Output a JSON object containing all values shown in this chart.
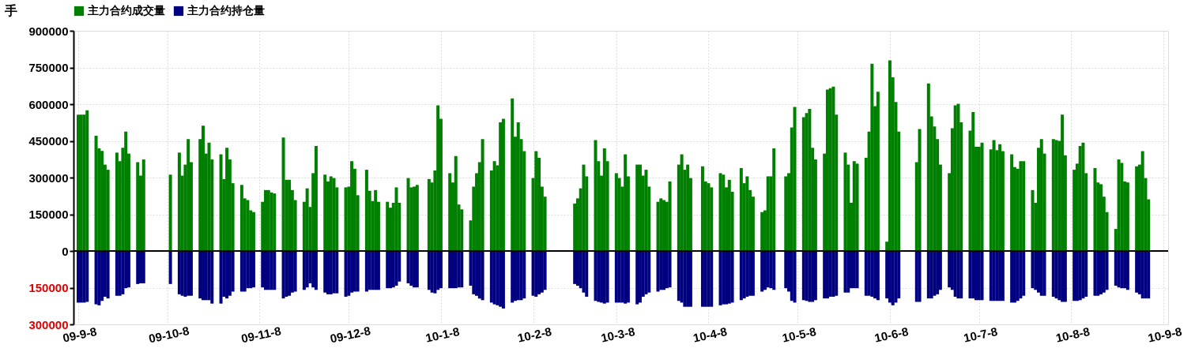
{
  "chart_data": {
    "type": "bar",
    "stacked": true,
    "ylabel": "手",
    "legend": "top",
    "grid": true,
    "xlim": [
      "2009-09-08",
      "2010-09-08"
    ],
    "xticks": [
      {
        "value": "2009-09-08",
        "label": "09-9-8"
      },
      {
        "value": "2009-10-08",
        "label": "09-10-8"
      },
      {
        "value": "2009-11-08",
        "label": "09-11-8"
      },
      {
        "value": "2009-12-08",
        "label": "09-12-8"
      },
      {
        "value": "2010-01-08",
        "label": "10-1-8"
      },
      {
        "value": "2010-02-08",
        "label": "10-2-8"
      },
      {
        "value": "2010-03-08",
        "label": "10-3-8"
      },
      {
        "value": "2010-04-08",
        "label": "10-4-8"
      },
      {
        "value": "2010-05-08",
        "label": "10-5-8"
      },
      {
        "value": "2010-06-08",
        "label": "10-6-8"
      },
      {
        "value": "2010-07-08",
        "label": "10-7-8"
      },
      {
        "value": "2010-08-08",
        "label": "10-8-8"
      },
      {
        "value": "2010-09-08",
        "label": "10-9-8"
      }
    ],
    "ylim": [
      -300000,
      900000
    ],
    "yticks": [
      {
        "value": -300000,
        "label": "300000"
      },
      {
        "value": -150000,
        "label": "150000"
      },
      0,
      150000,
      300000,
      450000,
      600000,
      750000,
      900000
    ],
    "ref_lines": [
      {
        "axis": "y",
        "value": 0
      }
    ],
    "x": [
      "2009-09-08",
      "2009-09-09",
      "2009-09-10",
      "2009-09-11",
      "2009-09-14",
      "2009-09-15",
      "2009-09-16",
      "2009-09-17",
      "2009-09-18",
      "2009-09-21",
      "2009-09-22",
      "2009-09-23",
      "2009-09-24",
      "2009-09-25",
      "2009-09-28",
      "2009-09-29",
      "2009-09-30",
      "2009-10-09",
      "2009-10-12",
      "2009-10-13",
      "2009-10-14",
      "2009-10-15",
      "2009-10-16",
      "2009-10-19",
      "2009-10-20",
      "2009-10-21",
      "2009-10-22",
      "2009-10-23",
      "2009-10-26",
      "2009-10-27",
      "2009-10-28",
      "2009-10-29",
      "2009-10-30",
      "2009-11-02",
      "2009-11-03",
      "2009-11-04",
      "2009-11-05",
      "2009-11-06",
      "2009-11-09",
      "2009-11-10",
      "2009-11-11",
      "2009-11-12",
      "2009-11-13",
      "2009-11-16",
      "2009-11-17",
      "2009-11-18",
      "2009-11-19",
      "2009-11-20",
      "2009-11-23",
      "2009-11-24",
      "2009-11-25",
      "2009-11-26",
      "2009-11-27",
      "2009-11-30",
      "2009-12-01",
      "2009-12-02",
      "2009-12-03",
      "2009-12-04",
      "2009-12-07",
      "2009-12-08",
      "2009-12-09",
      "2009-12-10",
      "2009-12-11",
      "2009-12-14",
      "2009-12-15",
      "2009-12-16",
      "2009-12-17",
      "2009-12-18",
      "2009-12-21",
      "2009-12-22",
      "2009-12-23",
      "2009-12-24",
      "2009-12-25",
      "2009-12-28",
      "2009-12-29",
      "2009-12-30",
      "2009-12-31",
      "2010-01-04",
      "2010-01-05",
      "2010-01-06",
      "2010-01-07",
      "2010-01-08",
      "2010-01-11",
      "2010-01-12",
      "2010-01-13",
      "2010-01-14",
      "2010-01-15",
      "2010-01-18",
      "2010-01-19",
      "2010-01-20",
      "2010-01-21",
      "2010-01-22",
      "2010-01-25",
      "2010-01-26",
      "2010-01-27",
      "2010-01-28",
      "2010-01-29",
      "2010-02-01",
      "2010-02-02",
      "2010-02-03",
      "2010-02-04",
      "2010-02-05",
      "2010-02-08",
      "2010-02-09",
      "2010-02-10",
      "2010-02-11",
      "2010-02-12",
      "2010-02-22",
      "2010-02-23",
      "2010-02-24",
      "2010-02-25",
      "2010-02-26",
      "2010-03-01",
      "2010-03-02",
      "2010-03-03",
      "2010-03-04",
      "2010-03-05",
      "2010-03-08",
      "2010-03-09",
      "2010-03-10",
      "2010-03-11",
      "2010-03-12",
      "2010-03-15",
      "2010-03-16",
      "2010-03-17",
      "2010-03-18",
      "2010-03-19",
      "2010-03-22",
      "2010-03-23",
      "2010-03-24",
      "2010-03-25",
      "2010-03-26",
      "2010-03-29",
      "2010-03-30",
      "2010-03-31",
      "2010-04-01",
      "2010-04-02",
      "2010-04-06",
      "2010-04-07",
      "2010-04-08",
      "2010-04-09",
      "2010-04-12",
      "2010-04-13",
      "2010-04-14",
      "2010-04-15",
      "2010-04-16",
      "2010-04-19",
      "2010-04-20",
      "2010-04-21",
      "2010-04-22",
      "2010-04-23",
      "2010-04-26",
      "2010-04-27",
      "2010-04-28",
      "2010-04-29",
      "2010-04-30",
      "2010-05-04",
      "2010-05-05",
      "2010-05-06",
      "2010-05-07",
      "2010-05-10",
      "2010-05-11",
      "2010-05-12",
      "2010-05-13",
      "2010-05-14",
      "2010-05-17",
      "2010-05-18",
      "2010-05-19",
      "2010-05-20",
      "2010-05-21",
      "2010-05-24",
      "2010-05-25",
      "2010-05-26",
      "2010-05-27",
      "2010-05-28",
      "2010-05-31",
      "2010-06-01",
      "2010-06-02",
      "2010-06-03",
      "2010-06-04",
      "2010-06-07",
      "2010-06-08",
      "2010-06-09",
      "2010-06-10",
      "2010-06-11",
      "2010-06-17",
      "2010-06-18",
      "2010-06-21",
      "2010-06-22",
      "2010-06-23",
      "2010-06-24",
      "2010-06-25",
      "2010-06-28",
      "2010-06-29",
      "2010-06-30",
      "2010-07-01",
      "2010-07-02",
      "2010-07-05",
      "2010-07-06",
      "2010-07-07",
      "2010-07-08",
      "2010-07-09",
      "2010-07-12",
      "2010-07-13",
      "2010-07-14",
      "2010-07-15",
      "2010-07-16",
      "2010-07-19",
      "2010-07-20",
      "2010-07-21",
      "2010-07-22",
      "2010-07-23",
      "2010-07-26",
      "2010-07-27",
      "2010-07-28",
      "2010-07-29",
      "2010-07-30",
      "2010-08-02",
      "2010-08-03",
      "2010-08-04",
      "2010-08-05",
      "2010-08-06",
      "2010-08-09",
      "2010-08-10",
      "2010-08-11",
      "2010-08-12",
      "2010-08-13",
      "2010-08-16",
      "2010-08-17",
      "2010-08-18",
      "2010-08-19",
      "2010-08-20",
      "2010-08-23",
      "2010-08-24",
      "2010-08-25",
      "2010-08-26",
      "2010-08-27",
      "2010-08-30",
      "2010-08-31",
      "2010-09-01",
      "2010-09-02",
      "2010-09-03"
    ],
    "series": [
      {
        "name": "主力合约成交量",
        "color": "#008000",
        "values": [
          557000,
          557000,
          557000,
          575000,
          471000,
          419000,
          409000,
          353000,
          332000,
          402000,
          367000,
          422000,
          488000,
          398000,
          363000,
          308000,
          374000,
          312000,
          402000,
          308000,
          353000,
          457000,
          363000,
          457000,
          512000,
          398000,
          443000,
          374000,
          395000,
          294000,
          422000,
          374000,
          277000,
          270000,
          215000,
          208000,
          166000,
          159000,
          201000,
          249000,
          249000,
          239000,
          235000,
          464000,
          291000,
          291000,
          249000,
          208000,
          201000,
          256000,
          180000,
          318000,
          429000,
          312000,
          284000,
          305000,
          298000,
          260000,
          260000,
          263000,
          367000,
          336000,
          228000,
          332000,
          246000,
          204000,
          249000,
          201000,
          201000,
          177000,
          197000,
          260000,
          197000,
          298000,
          260000,
          263000,
          270000,
          294000,
          280000,
          329000,
          595000,
          540000,
          318000,
          280000,
          388000,
          190000,
          170000,
          125000,
          263000,
          318000,
          363000,
          457000,
          329000,
          367000,
          350000,
          526000,
          540000,
          623000,
          467000,
          526000,
          457000,
          408000,
          298000,
          408000,
          381000,
          263000,
          222000,
          194000,
          215000,
          256000,
          353000,
          305000,
          453000,
          367000,
          308000,
          419000,
          367000,
          318000,
          298000,
          263000,
          395000,
          305000,
          353000,
          353000,
          308000,
          332000,
          263000,
          201000,
          215000,
          208000,
          201000,
          284000,
          353000,
          395000,
          332000,
          353000,
          298000,
          346000,
          284000,
          277000,
          260000,
          318000,
          312000,
          260000,
          291000,
          242000,
          339000,
          277000,
          305000,
          249000,
          222000,
          159000,
          166000,
          305000,
          305000,
          419000,
          305000,
          318000,
          505000,
          589000,
          547000,
          564000,
          581000,
          422000,
          374000,
          398000,
          660000,
          665000,
          672000,
          557000,
          402000,
          353000,
          197000,
          367000,
          357000,
          381000,
          488000,
          765000,
          592000,
          651000,
          38000,
          779000,
          710000,
          609000,
          488000,
          363000,
          498000,
          685000,
          550000,
          509000,
          457000,
          353000,
          318000,
          502000,
          595000,
          602000,
          526000,
          492000,
          568000,
          426000,
          426000,
          443000,
          415000,
          453000,
          412000,
          436000,
          408000,
          395000,
          343000,
          336000,
          367000,
          367000,
          249000,
          197000,
          422000,
          457000,
          398000,
          457000,
          453000,
          450000,
          557000,
          391000,
          332000,
          357000,
          429000,
          443000,
          318000,
          339000,
          280000,
          273000,
          222000,
          159000,
          90000,
          374000,
          360000,
          284000,
          280000,
          346000,
          353000,
          408000,
          298000,
          211000
        ]
      },
      {
        "name": "主力合约持仓量",
        "color": "#000080",
        "values": [
          -211000,
          -211000,
          -211000,
          -208000,
          -218000,
          -222000,
          -204000,
          -187000,
          -194000,
          -183000,
          -183000,
          -177000,
          -152000,
          -149000,
          -135000,
          -132000,
          -132000,
          -135000,
          -177000,
          -183000,
          -187000,
          -183000,
          -183000,
          -194000,
          -201000,
          -201000,
          -201000,
          -215000,
          -215000,
          -187000,
          -194000,
          -183000,
          -166000,
          -166000,
          -166000,
          -152000,
          -152000,
          -149000,
          -149000,
          -159000,
          -159000,
          -159000,
          -159000,
          -194000,
          -187000,
          -183000,
          -170000,
          -166000,
          -159000,
          -149000,
          -132000,
          -149000,
          -159000,
          -170000,
          -177000,
          -177000,
          -173000,
          -173000,
          -187000,
          -183000,
          -170000,
          -166000,
          -166000,
          -166000,
          -159000,
          -159000,
          -159000,
          -159000,
          -152000,
          -152000,
          -149000,
          -142000,
          -125000,
          -132000,
          -142000,
          -149000,
          -149000,
          -159000,
          -170000,
          -173000,
          -159000,
          -152000,
          -152000,
          -152000,
          -152000,
          -149000,
          -149000,
          -142000,
          -177000,
          -183000,
          -194000,
          -201000,
          -211000,
          -218000,
          -222000,
          -228000,
          -235000,
          -211000,
          -204000,
          -201000,
          -201000,
          -194000,
          -183000,
          -187000,
          -177000,
          -170000,
          -159000,
          -135000,
          -142000,
          -152000,
          -170000,
          -187000,
          -204000,
          -208000,
          -211000,
          -215000,
          -211000,
          -211000,
          -211000,
          -211000,
          -215000,
          -211000,
          -218000,
          -211000,
          -187000,
          -177000,
          -170000,
          -166000,
          -159000,
          -159000,
          -152000,
          -149000,
          -204000,
          -211000,
          -228000,
          -228000,
          -228000,
          -228000,
          -228000,
          -228000,
          -228000,
          -222000,
          -218000,
          -218000,
          -215000,
          -211000,
          -201000,
          -194000,
          -187000,
          -183000,
          -183000,
          -166000,
          -159000,
          -149000,
          -152000,
          -159000,
          -152000,
          -166000,
          -204000,
          -211000,
          -201000,
          -204000,
          -208000,
          -208000,
          -201000,
          -194000,
          -194000,
          -187000,
          -187000,
          -183000,
          -170000,
          -170000,
          -152000,
          -152000,
          -152000,
          -183000,
          -183000,
          -187000,
          -194000,
          -201000,
          -194000,
          -211000,
          -222000,
          -211000,
          -194000,
          -208000,
          -208000,
          -194000,
          -194000,
          -183000,
          -177000,
          -159000,
          -149000,
          -159000,
          -187000,
          -194000,
          -194000,
          -194000,
          -194000,
          -201000,
          -201000,
          -201000,
          -204000,
          -204000,
          -204000,
          -204000,
          -204000,
          -211000,
          -211000,
          -204000,
          -194000,
          -183000,
          -152000,
          -159000,
          -170000,
          -183000,
          -183000,
          -187000,
          -194000,
          -201000,
          -208000,
          -208000,
          -204000,
          -204000,
          -201000,
          -194000,
          -187000,
          -183000,
          -183000,
          -177000,
          -170000,
          -159000,
          -142000,
          -149000,
          -152000,
          -152000,
          -159000,
          -170000,
          -177000,
          -194000,
          -194000,
          -194000
        ]
      }
    ]
  }
}
